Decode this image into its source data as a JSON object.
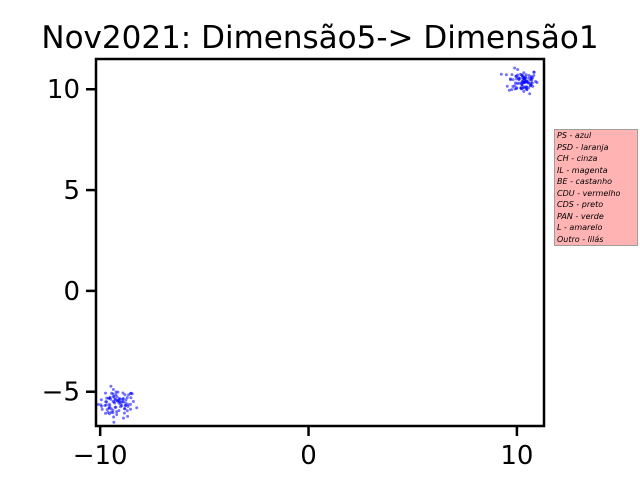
{
  "chart_data": {
    "type": "scatter",
    "title": "Nov2021: Dimensão5-> Dimensão1",
    "xlabel": "",
    "ylabel": "",
    "xlim": [
      -10.2,
      11.3
    ],
    "ylim": [
      -6.7,
      11.5
    ],
    "x_ticks": [
      -10,
      0,
      10
    ],
    "x_tick_labels": [
      "−10",
      "0",
      "10"
    ],
    "y_ticks": [
      -5,
      0,
      5,
      10
    ],
    "y_tick_labels": [
      "−5",
      "0",
      "5",
      "10"
    ],
    "grid": false,
    "marker_color": "#0000ff",
    "clusters": [
      {
        "center_x": -9.2,
        "center_y": -5.6,
        "count": 90,
        "spread_x": 0.45,
        "spread_y": 0.35
      },
      {
        "center_x": 10.3,
        "center_y": 10.4,
        "count": 90,
        "spread_x": 0.35,
        "spread_y": 0.3
      }
    ],
    "legend": {
      "placement": "right",
      "background": "#ffb3b3",
      "entries": [
        "PS - azul",
        "PSD - laranja",
        "CH - cinza",
        "IL - magenta",
        "BE - castanho",
        "CDU - vermelho",
        "CDS - preto",
        "PAN - verde",
        "L - amarelo",
        "Outro - lilás"
      ]
    }
  }
}
